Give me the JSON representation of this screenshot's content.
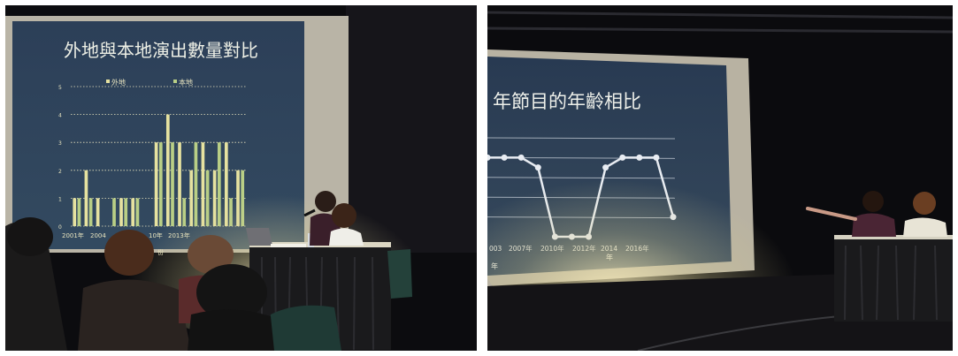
{
  "left_photo": {
    "slide_title": "外地與本地演出數量對比",
    "legend": [
      "外地",
      "本地"
    ],
    "y_ticks": [
      "5",
      "4",
      "3",
      "2",
      "1",
      "0"
    ],
    "x_ticks": [
      "2001年",
      "2004",
      "10年",
      "2013年"
    ],
    "x_unit": "份"
  },
  "right_photo": {
    "slide_title": "年節目的年齡相比",
    "x_ticks": [
      "003",
      "2007年",
      "2010年",
      "2012年",
      "2014",
      "2016年"
    ],
    "x_sub": [
      "年",
      "年"
    ]
  },
  "colors": {
    "slide_bg": "#27384f",
    "bar_light": "#e6e2a0",
    "bar_green": "#b9cf86",
    "stage_dark": "#0c0c0f",
    "tablecloth": "#1a1a1c",
    "line": "#e8ecf2"
  },
  "chart_data": [
    {
      "type": "bar",
      "title": "外地與本地演出數量對比",
      "categories": [
        "2001年",
        "",
        "",
        "2004",
        "",
        "",
        "",
        "10年",
        "",
        "",
        "2013年",
        "",
        "",
        "",
        ""
      ],
      "series": [
        {
          "name": "外地",
          "values": [
            1,
            2,
            1,
            0,
            1,
            1,
            0,
            3,
            4,
            3,
            2,
            3,
            2,
            3,
            2
          ]
        },
        {
          "name": "本地",
          "values": [
            1,
            1,
            0,
            1,
            1,
            1,
            0,
            3,
            3,
            1,
            3,
            2,
            3,
            1,
            2
          ]
        }
      ],
      "ylim": [
        0,
        5
      ],
      "grid": true,
      "legend": "top"
    },
    {
      "type": "line",
      "title": "年節目的年齡相比",
      "x": [
        "003",
        "",
        "2007年",
        "",
        "2010年",
        "",
        "2012年",
        "",
        "2014",
        "",
        "2016年",
        ""
      ],
      "values": [
        4,
        4,
        4,
        3.5,
        0,
        0,
        0,
        3.5,
        4,
        4,
        4,
        1
      ],
      "ylim": [
        0,
        5
      ],
      "grid": true
    }
  ]
}
